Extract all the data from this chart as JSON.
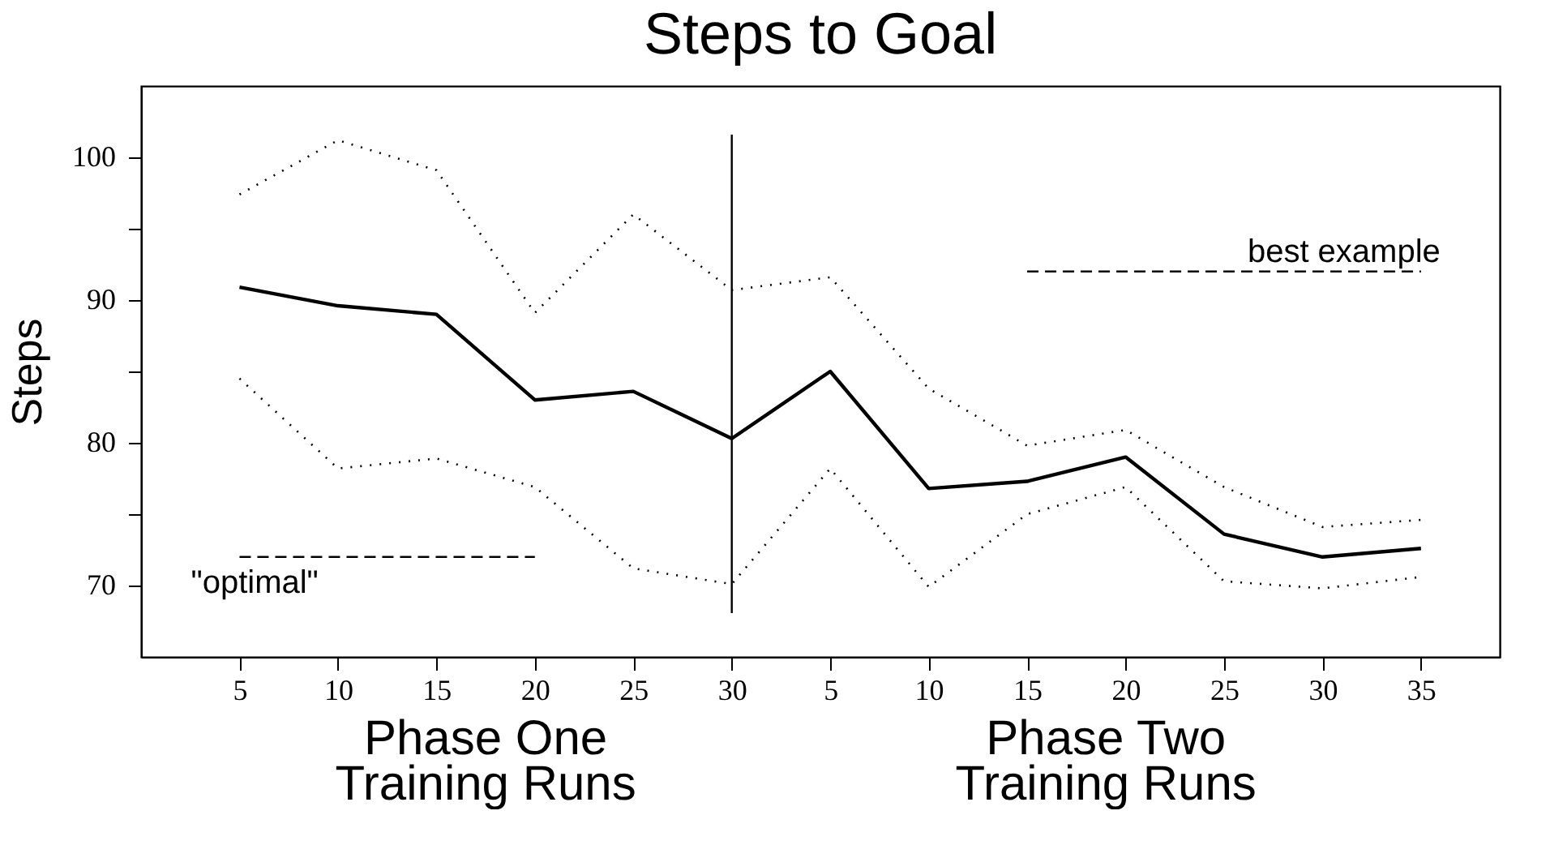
{
  "chart_data": {
    "type": "line",
    "title": "Steps to Goal",
    "ylabel": "Steps",
    "categories": [
      "5",
      "10",
      "15",
      "20",
      "25",
      "30",
      "5",
      "10",
      "15",
      "20",
      "25",
      "30",
      "35"
    ],
    "series": [
      {
        "color": "#000000",
        "line_style": "solid",
        "values": [
          90.9,
          89.6,
          89.0,
          83.0,
          83.6,
          80.3,
          85.0,
          76.8,
          77.3,
          79.0,
          73.6,
          72.0,
          72.6
        ]
      },
      {
        "color": "#000000",
        "line_style": "dotted",
        "values": [
          97.4,
          101.2,
          99.1,
          89.1,
          96.0,
          90.7,
          91.6,
          83.8,
          79.8,
          80.9,
          76.9,
          74.1,
          74.6
        ]
      },
      {
        "color": "#000000",
        "line_style": "dotted",
        "values": [
          84.5,
          78.2,
          78.9,
          76.9,
          71.2,
          70.1,
          78.2,
          69.9,
          75.0,
          76.9,
          70.3,
          69.8,
          70.6
        ]
      },
      {
        "type": "line",
        "color": "#000000",
        "line_style": "dashed",
        "values": [
          72,
          72,
          72,
          72,
          null,
          null,
          null,
          null,
          null,
          null,
          null,
          null,
          null
        ]
      },
      {
        "type": "line",
        "color": "#000000",
        "line_style": "dashed",
        "values": [
          null,
          null,
          null,
          null,
          null,
          null,
          null,
          null,
          92,
          92,
          92,
          92,
          92
        ]
      }
    ],
    "ref_lines": [
      {
        "axis": "x",
        "value": "30",
        "color": "#000000",
        "line_style": "solid"
      }
    ],
    "annotations": [
      "Phase One\nTraining Runs",
      "Phase Two\nTraining Runs",
      {
        "text": "\"optimal\"",
        "x": "5",
        "y": 72
      },
      {
        "text": "best example",
        "x": "35",
        "y": 92
      }
    ],
    "ylim": [
      65,
      105
    ],
    "yticks": [
      70,
      {
        "value": 75,
        "label": null
      },
      80,
      {
        "value": 85,
        "label": null
      },
      90,
      {
        "value": 95,
        "label": null
      },
      100
    ],
    "grid": false,
    "legend": false,
    "marker": "none"
  }
}
